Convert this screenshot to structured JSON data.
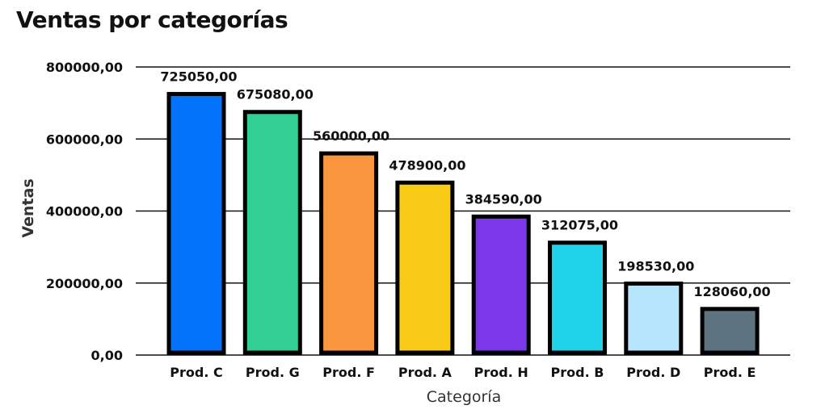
{
  "chart_data": {
    "type": "bar",
    "title": "Ventas por categorías",
    "xlabel": "Categoría",
    "ylabel": "Ventas",
    "ylim": [
      0,
      800000
    ],
    "yticks": [
      "0,00",
      "200000,00",
      "400000,00",
      "600000,00",
      "800000,00"
    ],
    "ytick_values": [
      0,
      200000,
      400000,
      600000,
      800000
    ],
    "grid": true,
    "categories": [
      "Prod. C",
      "Prod. G",
      "Prod. F",
      "Prod. A",
      "Prod. H",
      "Prod. B",
      "Prod. D",
      "Prod. E"
    ],
    "values": [
      725050,
      675080,
      560000,
      478900,
      384590,
      312075,
      198530,
      128060
    ],
    "value_labels": [
      "725050,00",
      "675080,00",
      "560000,00",
      "478900,00",
      "384590,00",
      "312075,00",
      "198530,00",
      "128060,00"
    ],
    "colors": [
      "#0373FB",
      "#31CF94",
      "#FA963F",
      "#F9CA16",
      "#7A38EA",
      "#1FD2E9",
      "#B7E5FC",
      "#5D7380"
    ]
  }
}
